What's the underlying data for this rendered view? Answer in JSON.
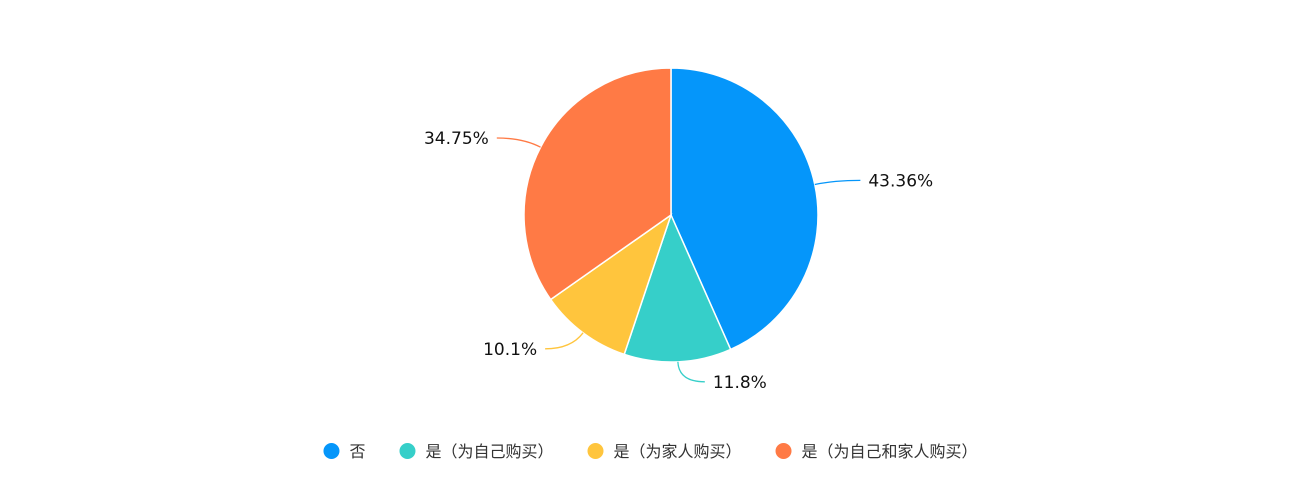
{
  "chart_data": {
    "type": "pie",
    "series": [
      {
        "name": "",
        "values": [
          43.36,
          11.8,
          10.1,
          34.75
        ]
      }
    ],
    "categories": [
      "否",
      "是（为自己购买）",
      "是（为家人购买）",
      "是（为自己和家人购买）"
    ],
    "data_labels": [
      "43.36%",
      "11.8%",
      "10.1%",
      "34.75%"
    ],
    "colors": [
      "#0596fa",
      "#36cfc9",
      "#ffc53d",
      "#ff7a45"
    ],
    "legend_position": "bottom-center",
    "start_angle": "12 o'clock, clockwise"
  }
}
